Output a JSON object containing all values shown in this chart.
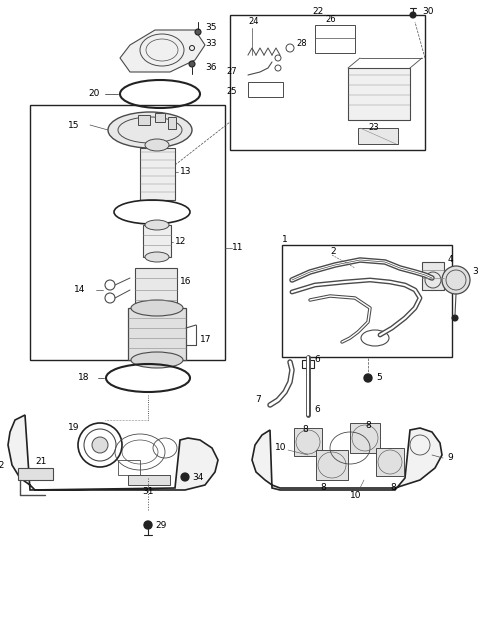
{
  "background_color": "#ffffff",
  "fig_width": 4.8,
  "fig_height": 6.23,
  "dpi": 100,
  "line_color": "#4a4a4a",
  "dark_color": "#222222",
  "gray_color": "#888888",
  "label_fontsize": 6.5,
  "small_fontsize": 6.0
}
